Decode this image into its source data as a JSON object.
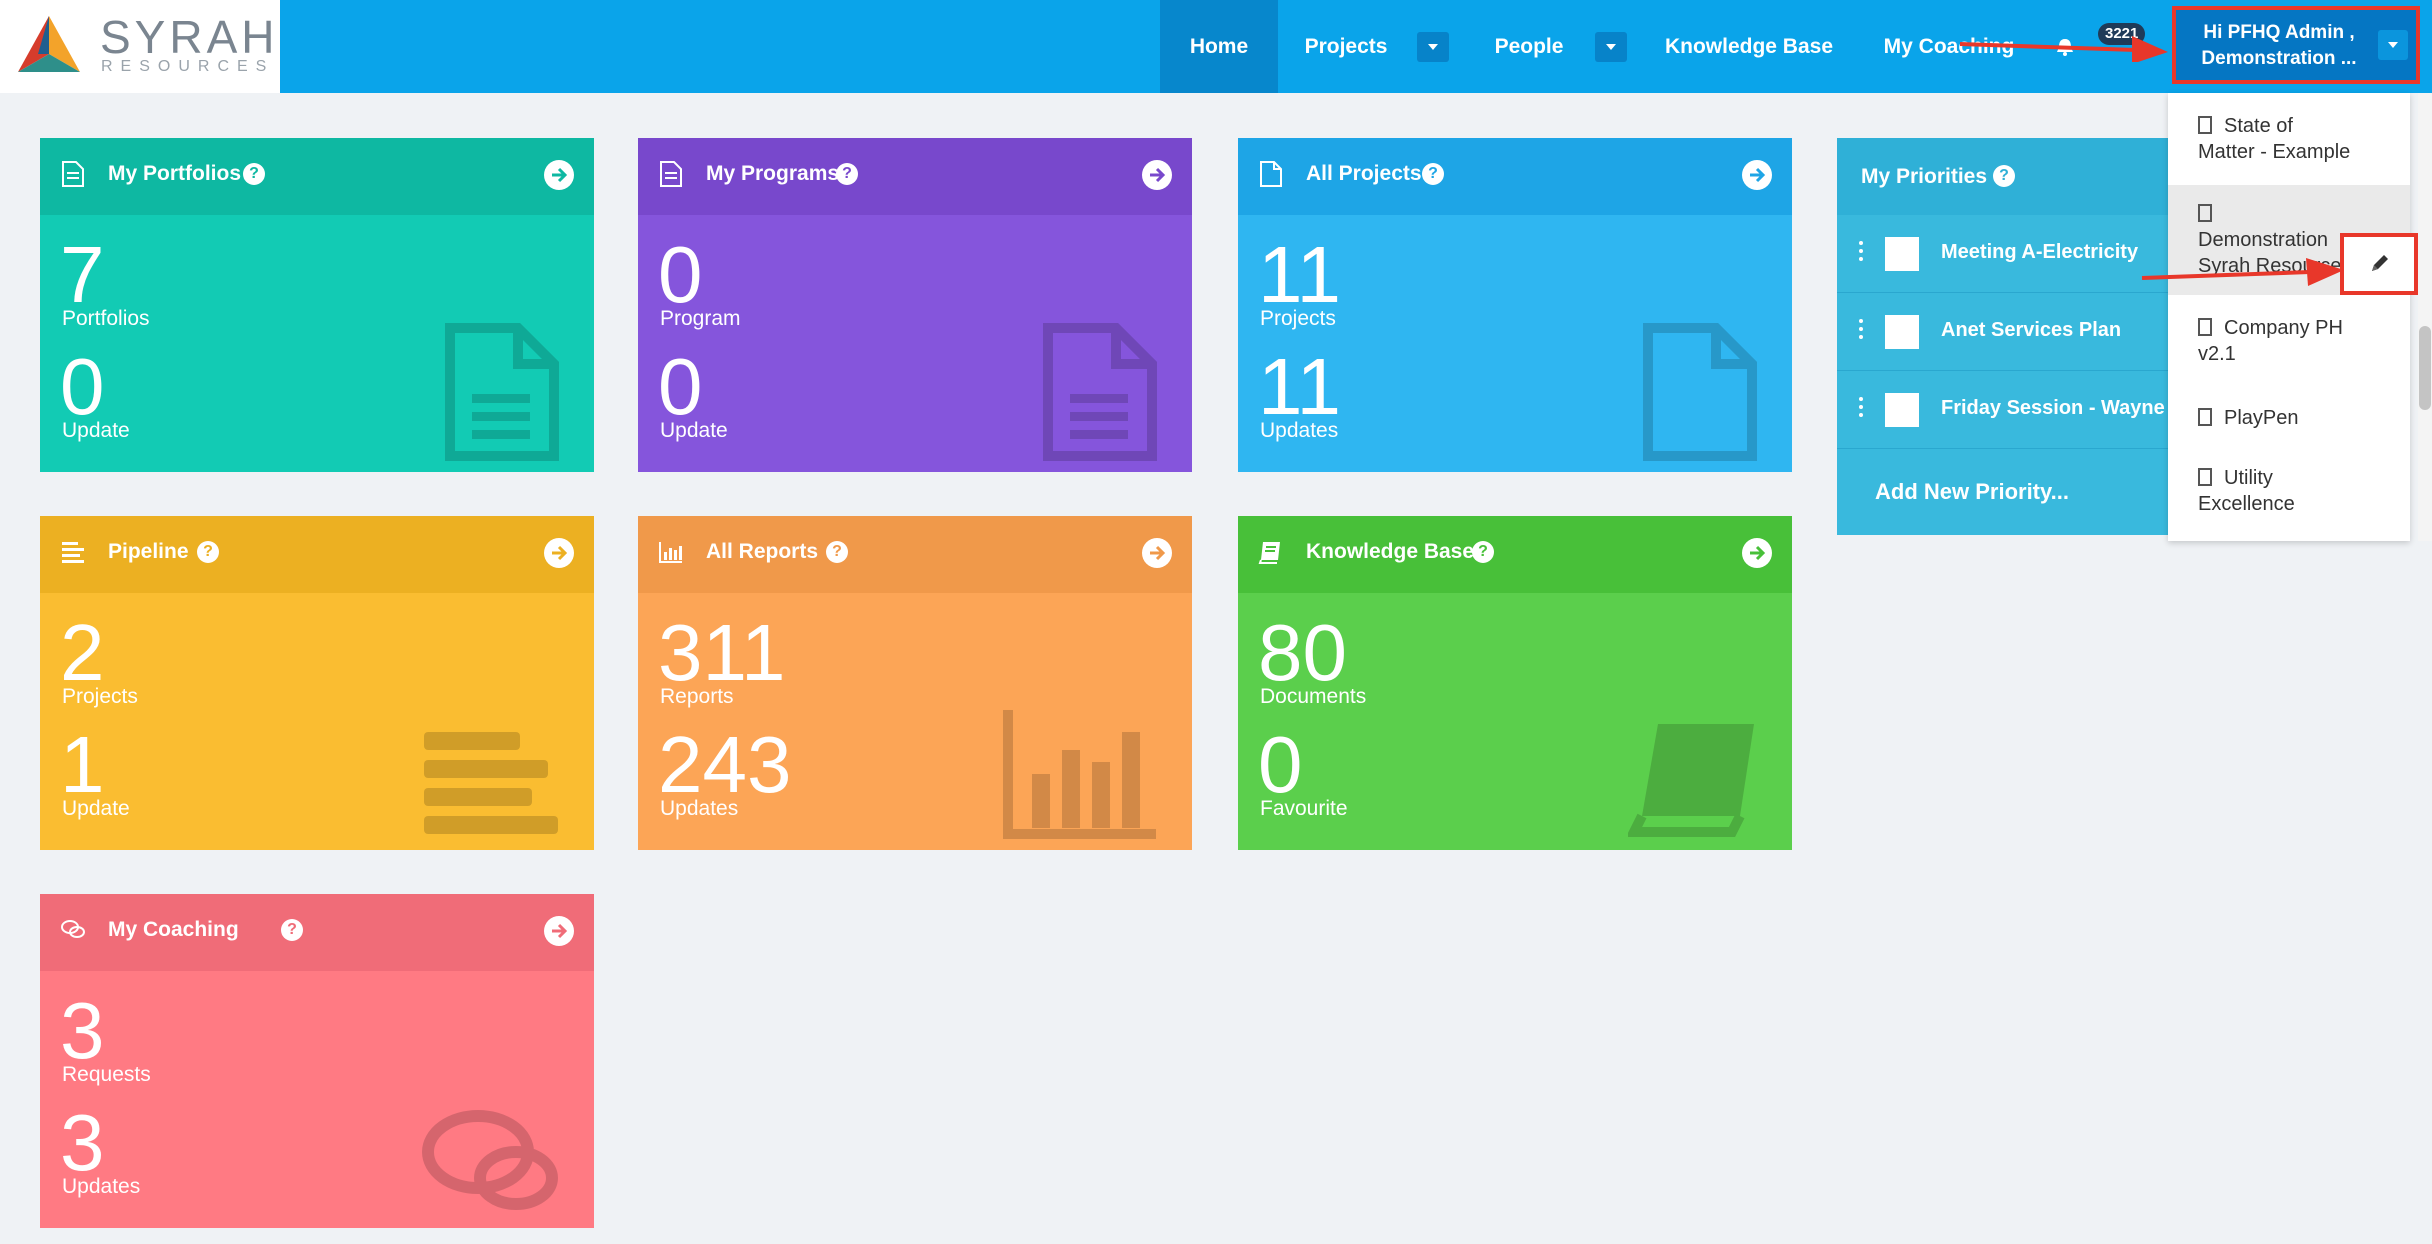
{
  "brand": {
    "name": "SYRAH",
    "tagline": "RESOURCES"
  },
  "nav": {
    "home": "Home",
    "projects": "Projects",
    "people": "People",
    "knowledge_base": "Knowledge Base",
    "my_coaching": "My Coaching",
    "notifications": "3221"
  },
  "user": {
    "greeting": "Hi PFHQ Admin ,",
    "org": "Demonstration ..."
  },
  "cards": {
    "portfolios": {
      "title": "My Portfolios",
      "n1": "7",
      "l1": "Portfolios",
      "n2": "0",
      "l2": "Update",
      "color": "#12cbb4"
    },
    "programs": {
      "title": "My Programs",
      "n1": "0",
      "l1": "Program",
      "n2": "0",
      "l2": "Update",
      "color": "#8555dc"
    },
    "projects": {
      "title": "All Projects",
      "n1": "11",
      "l1": "Projects",
      "n2": "11",
      "l2": "Updates",
      "color": "#2fb6f1"
    },
    "pipeline": {
      "title": "Pipeline",
      "n1": "2",
      "l1": "Projects",
      "n2": "1",
      "l2": "Update",
      "color": "#fabd31"
    },
    "reports": {
      "title": "All Reports",
      "n1": "311",
      "l1": "Reports",
      "n2": "243",
      "l2": "Updates",
      "color": "#fca556"
    },
    "kb": {
      "title": "Knowledge Base",
      "n1": "80",
      "l1": "Documents",
      "n2": "0",
      "l2": "Favourite",
      "color": "#5bcf4c"
    },
    "coaching": {
      "title": "My Coaching",
      "n1": "3",
      "l1": "Requests",
      "n2": "3",
      "l2": "Updates",
      "color": "#ff7a83"
    }
  },
  "priorities": {
    "title": "My Priorities",
    "items": [
      "Meeting A-Electricity",
      "Anet Services Plan",
      "Friday Session - Wayne"
    ],
    "add": "Add New Priority..."
  },
  "dropdown": {
    "items": [
      {
        "l1": "State of",
        "l2": "Matter - Example"
      },
      {
        "l1": "Demonstration",
        "l2": "Syrah Resources"
      },
      {
        "l1": "Company PH",
        "l2": "v2.1"
      },
      {
        "l1": "PlayPen",
        "l2": ""
      },
      {
        "l1": "Utility",
        "l2": "Excellence"
      }
    ]
  },
  "icons": {
    "help": "?",
    "arrow": "arrow-right-circle-icon",
    "edit": "pencil-icon",
    "bell": "bell-icon",
    "building": "building-icon"
  }
}
